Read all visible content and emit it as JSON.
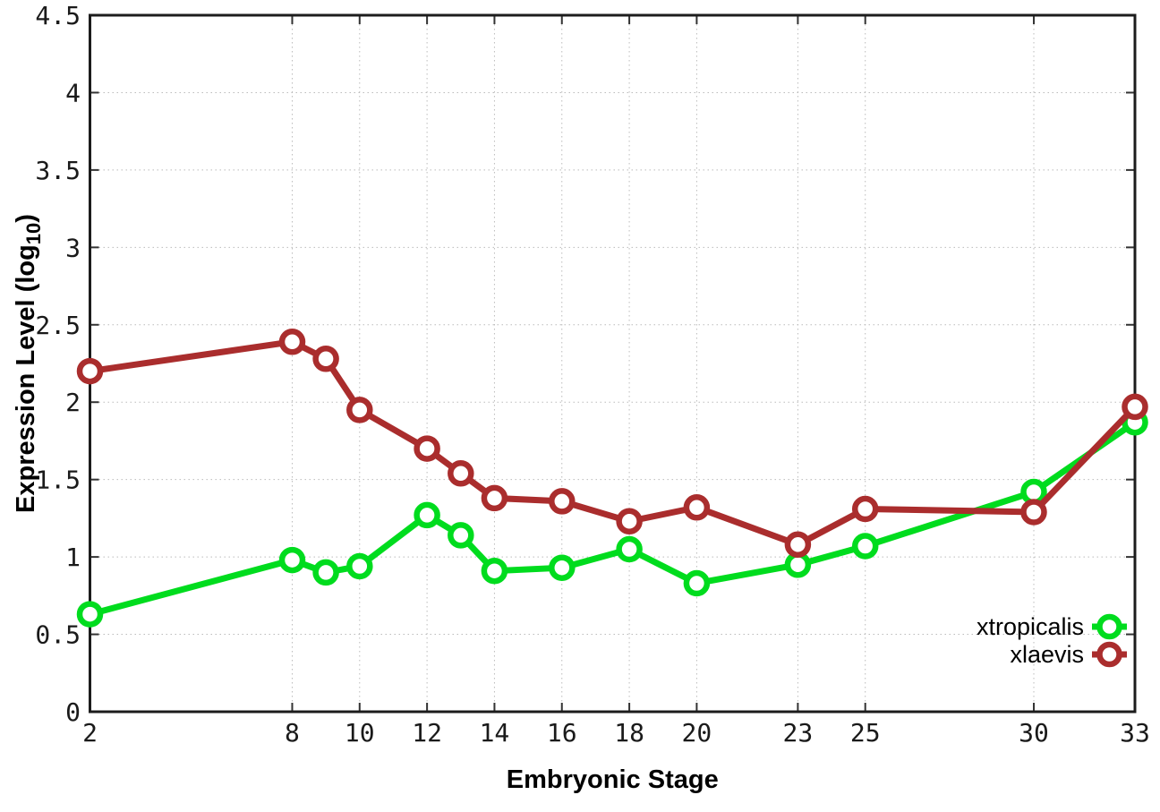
{
  "chart_data": {
    "type": "line",
    "title": "",
    "xlabel": "Embryonic Stage",
    "ylabel": "Expression Level (log10)",
    "ylabel_parts": {
      "main": "Expression Level (log",
      "subscript": "10",
      "suffix": ")"
    },
    "x": [
      2,
      8,
      9,
      10,
      12,
      13,
      14,
      16,
      18,
      20,
      23,
      25,
      30,
      33
    ],
    "series": [
      {
        "name": "xtropicalis",
        "color": "#00dc1e",
        "values": [
          0.63,
          0.98,
          0.9,
          0.94,
          1.27,
          1.14,
          0.91,
          0.93,
          1.05,
          0.83,
          0.95,
          1.07,
          1.42,
          1.87
        ]
      },
      {
        "name": "xlaevis",
        "color": "#aa2d2d",
        "values": [
          2.2,
          2.39,
          2.28,
          1.95,
          1.7,
          1.54,
          1.38,
          1.36,
          1.23,
          1.32,
          1.08,
          1.31,
          1.29,
          1.97
        ]
      }
    ],
    "xlim": [
      2,
      33
    ],
    "ylim": [
      0,
      4.5
    ],
    "xticks": [
      {
        "v": 2,
        "label": "2"
      },
      {
        "v": 8,
        "label": "8"
      },
      {
        "v": 10,
        "label": "10"
      },
      {
        "v": 12,
        "label": "12"
      },
      {
        "v": 14,
        "label": "14"
      },
      {
        "v": 16,
        "label": "16"
      },
      {
        "v": 18,
        "label": "18"
      },
      {
        "v": 20,
        "label": "20"
      },
      {
        "v": 23,
        "label": "23"
      },
      {
        "v": 25,
        "label": "25"
      },
      {
        "v": 30,
        "label": "30"
      },
      {
        "v": 33,
        "label": "33"
      }
    ],
    "yticks": [
      {
        "v": 0,
        "label": "0"
      },
      {
        "v": 0.5,
        "label": "0.5"
      },
      {
        "v": 1,
        "label": "1"
      },
      {
        "v": 1.5,
        "label": "1.5"
      },
      {
        "v": 2,
        "label": "2"
      },
      {
        "v": 2.5,
        "label": "2.5"
      },
      {
        "v": 3,
        "label": "3"
      },
      {
        "v": 3.5,
        "label": "3.5"
      },
      {
        "v": 4,
        "label": "4"
      },
      {
        "v": 4.5,
        "label": "4.5"
      }
    ],
    "grid": true,
    "legend_position": "bottom-right",
    "marker": "open-circle"
  },
  "colors": {
    "background": "#ffffff",
    "border": "#1c1c1c",
    "grid": "#bbbbbb",
    "tick": "#333333",
    "tick_label": "#1a1a1a",
    "legend_text": "#000000"
  }
}
